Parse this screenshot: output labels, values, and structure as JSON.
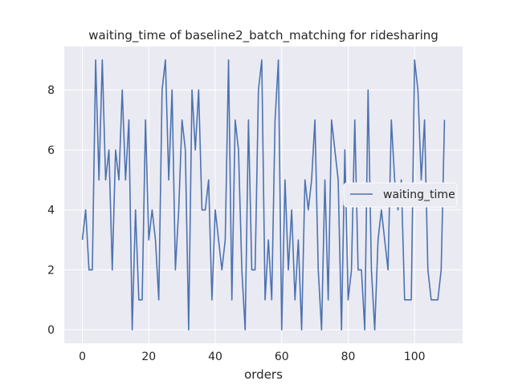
{
  "chart_data": {
    "type": "line",
    "title": "waiting_time of baseline2_batch_matching for ridesharing",
    "xlabel": "orders",
    "ylabel": "",
    "xlim": [
      -5.45,
      114.45
    ],
    "ylim": [
      -0.45,
      9.45
    ],
    "xticks": [
      0,
      20,
      40,
      60,
      80,
      100
    ],
    "yticks": [
      0,
      2,
      4,
      6,
      8
    ],
    "grid": true,
    "legend_position": "center-right",
    "series": [
      {
        "name": "waiting_time",
        "color": "#4c72b0",
        "values": [
          3,
          4,
          2,
          2,
          9,
          5,
          9,
          5,
          6,
          2,
          6,
          5,
          8,
          5,
          7,
          0,
          4,
          1,
          1,
          7,
          3,
          4,
          3,
          1,
          8,
          9,
          5,
          8,
          2,
          4,
          7,
          6,
          0,
          8,
          6,
          8,
          4,
          4,
          5,
          1,
          4,
          3,
          2,
          3,
          9,
          1,
          7,
          6,
          2,
          0,
          7,
          2,
          2,
          8,
          9,
          1,
          3,
          1,
          7,
          9,
          0,
          5,
          2,
          4,
          1,
          3,
          0,
          5,
          4,
          5,
          7,
          2,
          0,
          5,
          1,
          7,
          6,
          5,
          0,
          6,
          1,
          2,
          7,
          2,
          2,
          0,
          8,
          2,
          0,
          3,
          4,
          3,
          2,
          7,
          5,
          4,
          5,
          1,
          1,
          1,
          9,
          8,
          5,
          7,
          2,
          1,
          1,
          1,
          2,
          7
        ]
      }
    ],
    "colors": {
      "background": "#eaeaf2",
      "grid": "#ffffff",
      "line": "#4c72b0"
    }
  }
}
